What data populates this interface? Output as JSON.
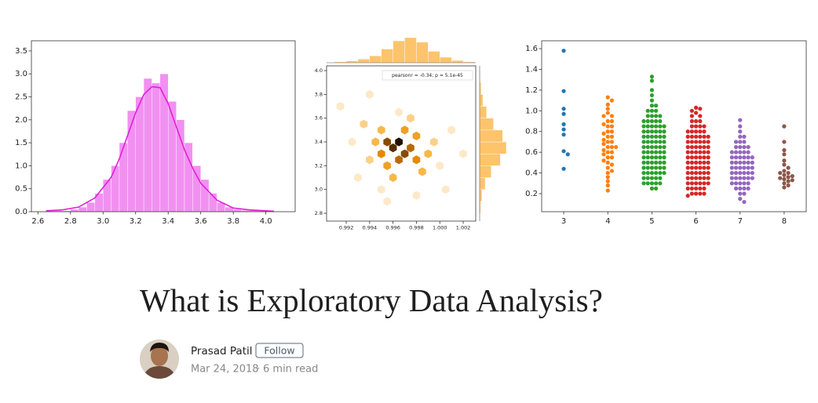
{
  "chart_data": [
    {
      "type": "histogram",
      "color": "#f07cf0",
      "line_color": "#e020d8",
      "bins": [
        2.6,
        2.65,
        2.7,
        2.75,
        2.8,
        2.85,
        2.9,
        2.95,
        3.0,
        3.05,
        3.1,
        3.15,
        3.2,
        3.25,
        3.3,
        3.35,
        3.4,
        3.45,
        3.5,
        3.55,
        3.6,
        3.65,
        3.7,
        3.75,
        3.8,
        3.85,
        3.9,
        3.95,
        4.0,
        4.05,
        4.1
      ],
      "values": [
        0,
        0.02,
        0.02,
        0.02,
        0.05,
        0.1,
        0.2,
        0.4,
        0.7,
        1.0,
        1.5,
        2.2,
        2.5,
        2.9,
        2.8,
        3.0,
        2.4,
        2.0,
        1.5,
        1.0,
        0.7,
        0.4,
        0.2,
        0.1,
        0.05,
        0.03,
        0.03,
        0.02,
        0.01,
        0
      ],
      "kde": {
        "x": [
          2.65,
          2.75,
          2.85,
          2.95,
          3.05,
          3.1,
          3.15,
          3.2,
          3.25,
          3.3,
          3.35,
          3.4,
          3.45,
          3.5,
          3.55,
          3.6,
          3.7,
          3.8,
          3.9,
          4.0,
          4.05
        ],
        "values": [
          0.02,
          0.04,
          0.1,
          0.3,
          0.75,
          1.15,
          1.65,
          2.15,
          2.55,
          2.72,
          2.7,
          2.35,
          1.85,
          1.35,
          0.95,
          0.62,
          0.25,
          0.08,
          0.04,
          0.02,
          0.01
        ]
      },
      "xlim": [
        2.56,
        4.18
      ],
      "ylim": [
        0,
        3.72
      ],
      "xticks": [
        2.6,
        2.8,
        {
          "value": 3,
          "label": "3.0"
        },
        3.2,
        3.4,
        3.6,
        3.8,
        {
          "value": 4,
          "label": "4.0"
        }
      ],
      "yticks": [
        {
          "value": 0,
          "label": "0.0"
        },
        0.5,
        {
          "value": 1,
          "label": "1.0"
        },
        1.5,
        {
          "value": 2,
          "label": "2.0"
        },
        2.5,
        {
          "value": 3,
          "label": "3.0"
        },
        3.5
      ]
    },
    {
      "type": "hexbin",
      "color": "#f29a12",
      "marginal_color": "#fdc46b",
      "annotation": "pearsonr = -0.34; p = 5.1e-45",
      "x": [
        0.9965,
        0.997,
        0.996,
        0.9955,
        0.9975,
        0.9965,
        0.995,
        0.998,
        0.9955,
        0.997,
        0.998,
        0.995,
        0.9945,
        0.999,
        0.996,
        0.9985,
        0.994,
        0.9995,
        0.9935,
        0.9975,
        0.9965,
        0.993,
        1.0,
        0.9925,
        0.995,
        1.001,
        0.998,
        0.9915,
        1.0005,
        0.994,
        0.9955,
        1.002
      ],
      "y": [
        3.4,
        3.3,
        3.35,
        3.4,
        3.35,
        3.25,
        3.3,
        3.25,
        3.2,
        3.5,
        3.45,
        3.5,
        3.4,
        3.3,
        3.1,
        3.15,
        3.25,
        3.4,
        3.55,
        3.6,
        3.65,
        3.1,
        3.2,
        3.4,
        3.0,
        3.5,
        2.95,
        3.7,
        3.0,
        3.8,
        2.9,
        3.3
      ],
      "counts": [
        9,
        7,
        8,
        7,
        6,
        6,
        5,
        5,
        4,
        4,
        4,
        3,
        3,
        3,
        3,
        3,
        2,
        2,
        2,
        2,
        1,
        1,
        1,
        1,
        1,
        1,
        1,
        1,
        1,
        1,
        1,
        1
      ],
      "x_marginal": {
        "bins": [
          0.991,
          0.992,
          0.993,
          0.994,
          0.995,
          0.996,
          0.997,
          0.998,
          0.999,
          1.0,
          1.001,
          1.002,
          1.003
        ],
        "counts": [
          2,
          4,
          8,
          15,
          30,
          48,
          55,
          45,
          25,
          12,
          5,
          2
        ]
      },
      "y_marginal": {
        "bins": [
          2.8,
          2.9,
          3.0,
          3.1,
          3.2,
          3.3,
          3.4,
          3.5,
          3.6,
          3.7,
          3.8,
          3.9,
          4.0
        ],
        "counts": [
          2,
          5,
          12,
          25,
          45,
          58,
          50,
          30,
          15,
          7,
          3,
          1
        ]
      },
      "xlim": [
        0.99032,
        1.00307
      ],
      "ylim": [
        2.734,
        4.04
      ],
      "xticks": [
        0.992,
        0.994,
        0.996,
        0.998,
        {
          "value": 1,
          "label": "1.000"
        },
        1.002
      ],
      "yticks": [
        2.8,
        {
          "value": 3,
          "label": "3.0"
        },
        3.2,
        3.4,
        3.6,
        3.8,
        {
          "value": 4,
          "label": "4.0"
        }
      ]
    },
    {
      "type": "swarm",
      "categories": [
        "3",
        "4",
        "5",
        "6",
        "7",
        "8"
      ],
      "colors": [
        "#1f77b4",
        "#ff7f0e",
        "#2ca02c",
        "#d62728",
        "#9467bd",
        "#8c564b"
      ],
      "values": [
        [
          1.58,
          1.19,
          1.02,
          0.97,
          0.87,
          0.82,
          0.77,
          0.61,
          0.58,
          0.44
        ],
        [
          1.13,
          1.1,
          1.06,
          1.02,
          0.98,
          0.95,
          0.95,
          0.9,
          0.9,
          0.87,
          0.85,
          0.85,
          0.8,
          0.8,
          0.78,
          0.75,
          0.75,
          0.72,
          0.7,
          0.7,
          0.68,
          0.65,
          0.65,
          0.65,
          0.62,
          0.6,
          0.6,
          0.58,
          0.55,
          0.55,
          0.52,
          0.5,
          0.48,
          0.45,
          0.42,
          0.4,
          0.36,
          0.32,
          0.28,
          0.23
        ],
        [
          1.33,
          1.29,
          1.2,
          1.15,
          1.1,
          1.05,
          1.05,
          1.0,
          1.0,
          1.0,
          0.95,
          0.95,
          0.95,
          0.95,
          0.9,
          0.9,
          0.9,
          0.9,
          0.9,
          0.85,
          0.85,
          0.85,
          0.85,
          0.85,
          0.85,
          0.8,
          0.8,
          0.8,
          0.8,
          0.8,
          0.8,
          0.75,
          0.75,
          0.75,
          0.75,
          0.75,
          0.75,
          0.7,
          0.7,
          0.7,
          0.7,
          0.7,
          0.7,
          0.65,
          0.65,
          0.65,
          0.65,
          0.65,
          0.65,
          0.6,
          0.6,
          0.6,
          0.6,
          0.6,
          0.6,
          0.55,
          0.55,
          0.55,
          0.55,
          0.55,
          0.55,
          0.5,
          0.5,
          0.5,
          0.5,
          0.5,
          0.5,
          0.45,
          0.45,
          0.45,
          0.45,
          0.45,
          0.45,
          0.4,
          0.4,
          0.4,
          0.4,
          0.4,
          0.4,
          0.35,
          0.35,
          0.35,
          0.35,
          0.35,
          0.3,
          0.3,
          0.3,
          0.3,
          0.3,
          0.25,
          0.25
        ],
        [
          1.03,
          1.02,
          1.0,
          0.98,
          0.95,
          0.95,
          0.9,
          0.9,
          0.9,
          0.85,
          0.85,
          0.85,
          0.85,
          0.8,
          0.8,
          0.8,
          0.8,
          0.8,
          0.75,
          0.75,
          0.75,
          0.75,
          0.75,
          0.75,
          0.7,
          0.7,
          0.7,
          0.7,
          0.7,
          0.7,
          0.65,
          0.65,
          0.65,
          0.65,
          0.65,
          0.65,
          0.6,
          0.6,
          0.6,
          0.6,
          0.6,
          0.6,
          0.55,
          0.55,
          0.55,
          0.55,
          0.55,
          0.55,
          0.5,
          0.5,
          0.5,
          0.5,
          0.5,
          0.5,
          0.45,
          0.45,
          0.45,
          0.45,
          0.45,
          0.45,
          0.4,
          0.4,
          0.4,
          0.4,
          0.4,
          0.4,
          0.35,
          0.35,
          0.35,
          0.35,
          0.35,
          0.35,
          0.3,
          0.3,
          0.3,
          0.3,
          0.3,
          0.3,
          0.25,
          0.25,
          0.25,
          0.25,
          0.25,
          0.2,
          0.2,
          0.2,
          0.2,
          0.18
        ],
        [
          0.91,
          0.85,
          0.8,
          0.75,
          0.75,
          0.7,
          0.7,
          0.7,
          0.65,
          0.65,
          0.65,
          0.65,
          0.6,
          0.6,
          0.6,
          0.6,
          0.6,
          0.55,
          0.55,
          0.55,
          0.55,
          0.55,
          0.55,
          0.5,
          0.5,
          0.5,
          0.5,
          0.5,
          0.5,
          0.45,
          0.45,
          0.45,
          0.45,
          0.45,
          0.45,
          0.4,
          0.4,
          0.4,
          0.4,
          0.4,
          0.4,
          0.35,
          0.35,
          0.35,
          0.35,
          0.35,
          0.35,
          0.3,
          0.3,
          0.3,
          0.3,
          0.3,
          0.25,
          0.25,
          0.25,
          0.25,
          0.2,
          0.2,
          0.15,
          0.12
        ],
        [
          0.85,
          0.7,
          0.62,
          0.58,
          0.52,
          0.48,
          0.45,
          0.42,
          0.4,
          0.4,
          0.38,
          0.37,
          0.36,
          0.35,
          0.34,
          0.33,
          0.32,
          0.3,
          0.28,
          0.26
        ]
      ],
      "ylim": [
        0.026,
        1.676
      ],
      "yticks": [
        0.2,
        0.4,
        0.6,
        0.8,
        {
          "value": 1,
          "label": "1.0"
        },
        1.2,
        1.4,
        1.6
      ]
    }
  ],
  "article": {
    "title": "What is Exploratory Data Analysis?",
    "author": "Prasad Patil",
    "follow": "Follow",
    "date": "Mar 24, 2018",
    "separator": "·",
    "read_time": "6 min read"
  }
}
